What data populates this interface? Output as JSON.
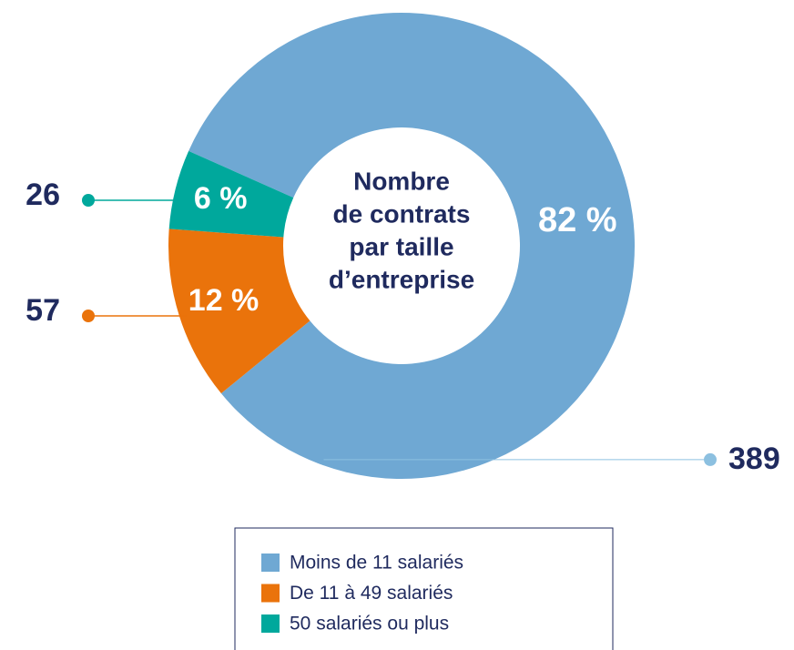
{
  "chart_data": {
    "type": "donut",
    "title_lines": [
      "Nombre",
      "de contrats",
      "par taille",
      "d’entreprise"
    ],
    "categories": [
      "Moins de 11 salariés",
      "De 11 à 49 salariés",
      "50 salariés ou plus"
    ],
    "values": [
      389,
      57,
      26
    ],
    "percent_labels": [
      "82 %",
      "12 %",
      "6 %"
    ],
    "colors": [
      "#6fa8d3",
      "#ea730b",
      "#00a89c"
    ],
    "legend": "bottom"
  }
}
